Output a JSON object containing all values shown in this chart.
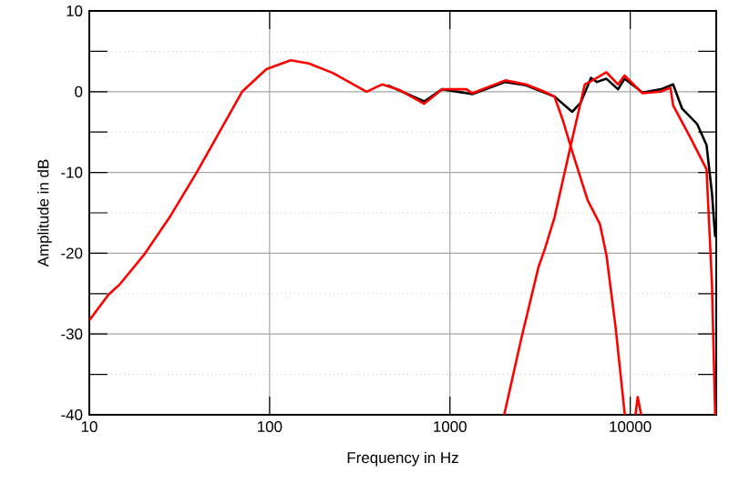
{
  "chart_data": {
    "type": "line",
    "xlabel": "Frequency in Hz",
    "ylabel": "Amplitude in dB",
    "log": "x",
    "grid": true,
    "xlim": [
      10,
      30000
    ],
    "ylim": [
      -40,
      10
    ],
    "xticks": [
      10,
      100,
      1000,
      10000
    ],
    "yticks": [
      -40,
      -30,
      -20,
      -10,
      0,
      10
    ],
    "series": [
      {
        "color": "#000000",
        "x": [
          450,
          720,
          905,
          1330,
          2030,
          2640,
          3340,
          3800,
          4770,
          5300,
          6060,
          6530,
          7380,
          8560,
          9300,
          11700,
          14800,
          17300,
          19400,
          23500,
          26500,
          28400,
          29600
        ],
        "values": [
          0.8,
          -1.2,
          0.3,
          -0.3,
          1.2,
          0.8,
          -0.1,
          -0.6,
          -2.5,
          -1.4,
          1.7,
          1.2,
          1.6,
          0.3,
          1.6,
          -0.1,
          0.3,
          0.9,
          -2.1,
          -4.0,
          -6.6,
          -12.6,
          -18
        ]
      },
      {
        "color": "#ff0000",
        "x": [
          10,
          12.8,
          14.7,
          20.1,
          27.8,
          39.4,
          70.4,
          96,
          131,
          165,
          225,
          345,
          420,
          527,
          720,
          905,
          1235,
          1330,
          2030,
          2640,
          3340,
          3800,
          4240,
          4770,
          5800,
          6790,
          7380,
          8300,
          9330,
          10000,
          10700,
          11000,
          11500
        ],
        "values": [
          -28.3,
          -25.1,
          -23.9,
          -20.2,
          -15.6,
          -10,
          0,
          2.8,
          3.9,
          3.5,
          2.3,
          0,
          0.9,
          0.2,
          -1.5,
          0.3,
          0.3,
          -0.2,
          1.4,
          0.9,
          0,
          -0.6,
          -3.6,
          -7.4,
          -13.4,
          -16.4,
          -20.2,
          -29.2,
          -40,
          null,
          -40,
          -37.8,
          -40
        ]
      },
      {
        "color": "#ff0000",
        "x": [
          2000,
          2480,
          3100,
          3370,
          3800,
          4640,
          5600,
          6530,
          7380,
          8560,
          9300,
          11700,
          14800,
          16700,
          17300,
          21800,
          26500,
          28400,
          29600
        ],
        "values": [
          -40,
          -30.7,
          -21.7,
          -19.4,
          -15.6,
          -7.0,
          0.9,
          1.7,
          2.4,
          0.9,
          2.0,
          -0.2,
          0,
          0.5,
          -1.7,
          -5.9,
          -9.6,
          -23.8,
          -40
        ]
      }
    ]
  }
}
